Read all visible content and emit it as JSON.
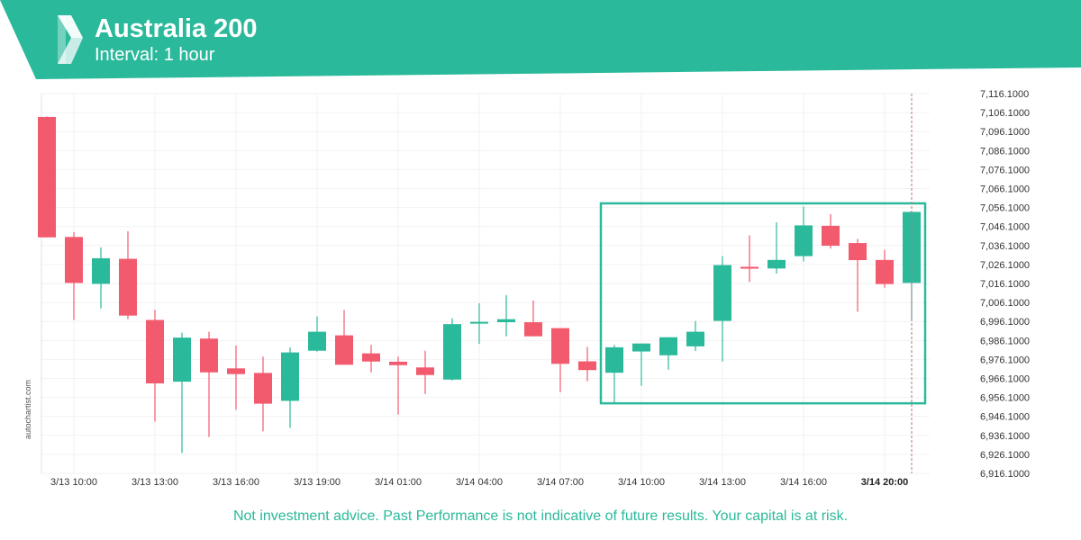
{
  "header": {
    "title": "Australia 200",
    "subtitle": "Interval: 1 hour",
    "brand_color": "#2bb99b",
    "logo_icon": "autochartist-logo-icon"
  },
  "watermark": "autochartist.com",
  "disclaimer": "Not investment advice. Past Performance is not indicative of future results. Your capital is at risk.",
  "colors": {
    "up": "#2bb99b",
    "down": "#f25a6e",
    "pattern": "#2bb99b"
  },
  "chart_data": {
    "type": "candlestick",
    "ylim": [
      6916.1,
      7116.1
    ],
    "y_ticks": [
      "7,116.1000",
      "7,106.1000",
      "7,096.1000",
      "7,086.1000",
      "7,076.1000",
      "7,066.1000",
      "7,056.1000",
      "7,046.1000",
      "7,036.1000",
      "7,026.1000",
      "7,016.1000",
      "7,006.1000",
      "6,996.1000",
      "6,986.1000",
      "6,976.1000",
      "6,966.1000",
      "6,956.1000",
      "6,946.1000",
      "6,936.1000",
      "6,926.1000",
      "6,916.1000"
    ],
    "x_labels": [
      {
        "index": 1,
        "label": "3/13 10:00"
      },
      {
        "index": 4,
        "label": "3/13 13:00"
      },
      {
        "index": 7,
        "label": "3/13 16:00"
      },
      {
        "index": 10,
        "label": "3/13 19:00"
      },
      {
        "index": 13,
        "label": "3/14 01:00"
      },
      {
        "index": 16,
        "label": "3/14 04:00"
      },
      {
        "index": 19,
        "label": "3/14 07:00"
      },
      {
        "index": 22,
        "label": "3/14 10:00"
      },
      {
        "index": 25,
        "label": "3/14 13:00"
      },
      {
        "index": 28,
        "label": "3/14 16:00"
      },
      {
        "index": 31,
        "label": "3/14 20:00",
        "highlight": true
      }
    ],
    "candles": [
      {
        "o": 7103.8,
        "h": 7104.1,
        "l": 7040.4,
        "c": 7040.4
      },
      {
        "o": 7040.6,
        "h": 7043.2,
        "l": 6996.9,
        "c": 7016.4
      },
      {
        "o": 7015.9,
        "h": 7035.1,
        "l": 7002.9,
        "c": 7029.4
      },
      {
        "o": 7029.1,
        "h": 7043.6,
        "l": 6997.3,
        "c": 6999.2
      },
      {
        "o": 6996.9,
        "h": 7002.2,
        "l": 6943.3,
        "c": 6963.5
      },
      {
        "o": 6964.4,
        "h": 6990.2,
        "l": 6926.9,
        "c": 6987.6
      },
      {
        "o": 6987.1,
        "h": 6990.7,
        "l": 6935.3,
        "c": 6969.3
      },
      {
        "o": 6971.4,
        "h": 6983.4,
        "l": 6949.6,
        "c": 6968.4
      },
      {
        "o": 6969.0,
        "h": 6977.6,
        "l": 6938.2,
        "c": 6952.8
      },
      {
        "o": 6954.3,
        "h": 6982.4,
        "l": 6940.1,
        "c": 6979.8
      },
      {
        "o": 6980.7,
        "h": 6998.8,
        "l": 6980.2,
        "c": 6990.7
      },
      {
        "o": 6988.8,
        "h": 7002.2,
        "l": 6974.7,
        "c": 6973.3
      },
      {
        "o": 6979.3,
        "h": 6983.8,
        "l": 6969.3,
        "c": 6975.0
      },
      {
        "o": 6974.9,
        "h": 6977.6,
        "l": 6947.1,
        "c": 6973.1
      },
      {
        "o": 6971.9,
        "h": 6980.7,
        "l": 6957.9,
        "c": 6967.9
      },
      {
        "o": 6965.5,
        "h": 6997.8,
        "l": 6965.0,
        "c": 6994.7
      },
      {
        "o": 6995.2,
        "h": 7005.7,
        "l": 6984.3,
        "c": 6995.9
      },
      {
        "o": 6995.7,
        "h": 7010.0,
        "l": 6988.3,
        "c": 6997.3
      },
      {
        "o": 6995.7,
        "h": 7007.1,
        "l": 6988.3,
        "c": 6988.3
      },
      {
        "o": 6992.6,
        "h": 6992.6,
        "l": 6958.9,
        "c": 6973.8
      },
      {
        "o": 6975.1,
        "h": 6982.7,
        "l": 6964.6,
        "c": 6970.5
      },
      {
        "o": 6969.1,
        "h": 6983.8,
        "l": 6953.5,
        "c": 6982.5
      },
      {
        "o": 6980.3,
        "h": 6984.5,
        "l": 6962.2,
        "c": 6984.5
      },
      {
        "o": 6978.3,
        "h": 6987.8,
        "l": 6970.7,
        "c": 6987.8
      },
      {
        "o": 6983.0,
        "h": 6996.4,
        "l": 6980.5,
        "c": 6990.7
      },
      {
        "o": 6996.4,
        "h": 7030.5,
        "l": 6975.0,
        "c": 7025.8
      },
      {
        "o": 7024.9,
        "h": 7041.5,
        "l": 7016.9,
        "c": 7023.9
      },
      {
        "o": 7024.0,
        "h": 7048.3,
        "l": 7021.3,
        "c": 7028.5
      },
      {
        "o": 7030.5,
        "h": 7056.6,
        "l": 7027.7,
        "c": 7046.7
      },
      {
        "o": 7046.5,
        "h": 7052.6,
        "l": 7034.5,
        "c": 7036.0
      },
      {
        "o": 7037.4,
        "h": 7039.6,
        "l": 7001.2,
        "c": 7028.4
      },
      {
        "o": 7028.5,
        "h": 7033.9,
        "l": 7013.9,
        "c": 7015.8
      },
      {
        "o": 7016.4,
        "h": 7054.4,
        "l": 6996.6,
        "c": 7053.8
      }
    ],
    "pattern_box": {
      "start_index": 20.5,
      "end_index": 32.5,
      "top": 7058.3,
      "bottom": 6953.0
    },
    "current_time_index": 32
  }
}
